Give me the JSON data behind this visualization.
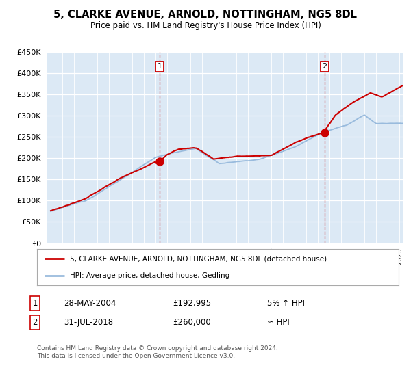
{
  "title": "5, CLARKE AVENUE, ARNOLD, NOTTINGHAM, NG5 8DL",
  "subtitle": "Price paid vs. HM Land Registry's House Price Index (HPI)",
  "legend_line1": "5, CLARKE AVENUE, ARNOLD, NOTTINGHAM, NG5 8DL (detached house)",
  "legend_line2": "HPI: Average price, detached house, Gedling",
  "annotation1_date": "28-MAY-2004",
  "annotation1_price": "£192,995",
  "annotation1_hpi": "5% ↑ HPI",
  "annotation2_date": "31-JUL-2018",
  "annotation2_price": "£260,000",
  "annotation2_hpi": "≈ HPI",
  "footer": "Contains HM Land Registry data © Crown copyright and database right 2024.\nThis data is licensed under the Open Government Licence v3.0.",
  "house_color": "#cc0000",
  "hpi_color": "#99bbdd",
  "plot_bg_color": "#dce9f5",
  "ylim": [
    0,
    450000
  ],
  "yticks": [
    0,
    50000,
    100000,
    150000,
    200000,
    250000,
    300000,
    350000,
    400000,
    450000
  ],
  "sale1_x": 2004.38,
  "sale1_y": 192995,
  "sale2_x": 2018.58,
  "sale2_y": 260000,
  "xlim_left": 1994.7,
  "xlim_right": 2025.3
}
